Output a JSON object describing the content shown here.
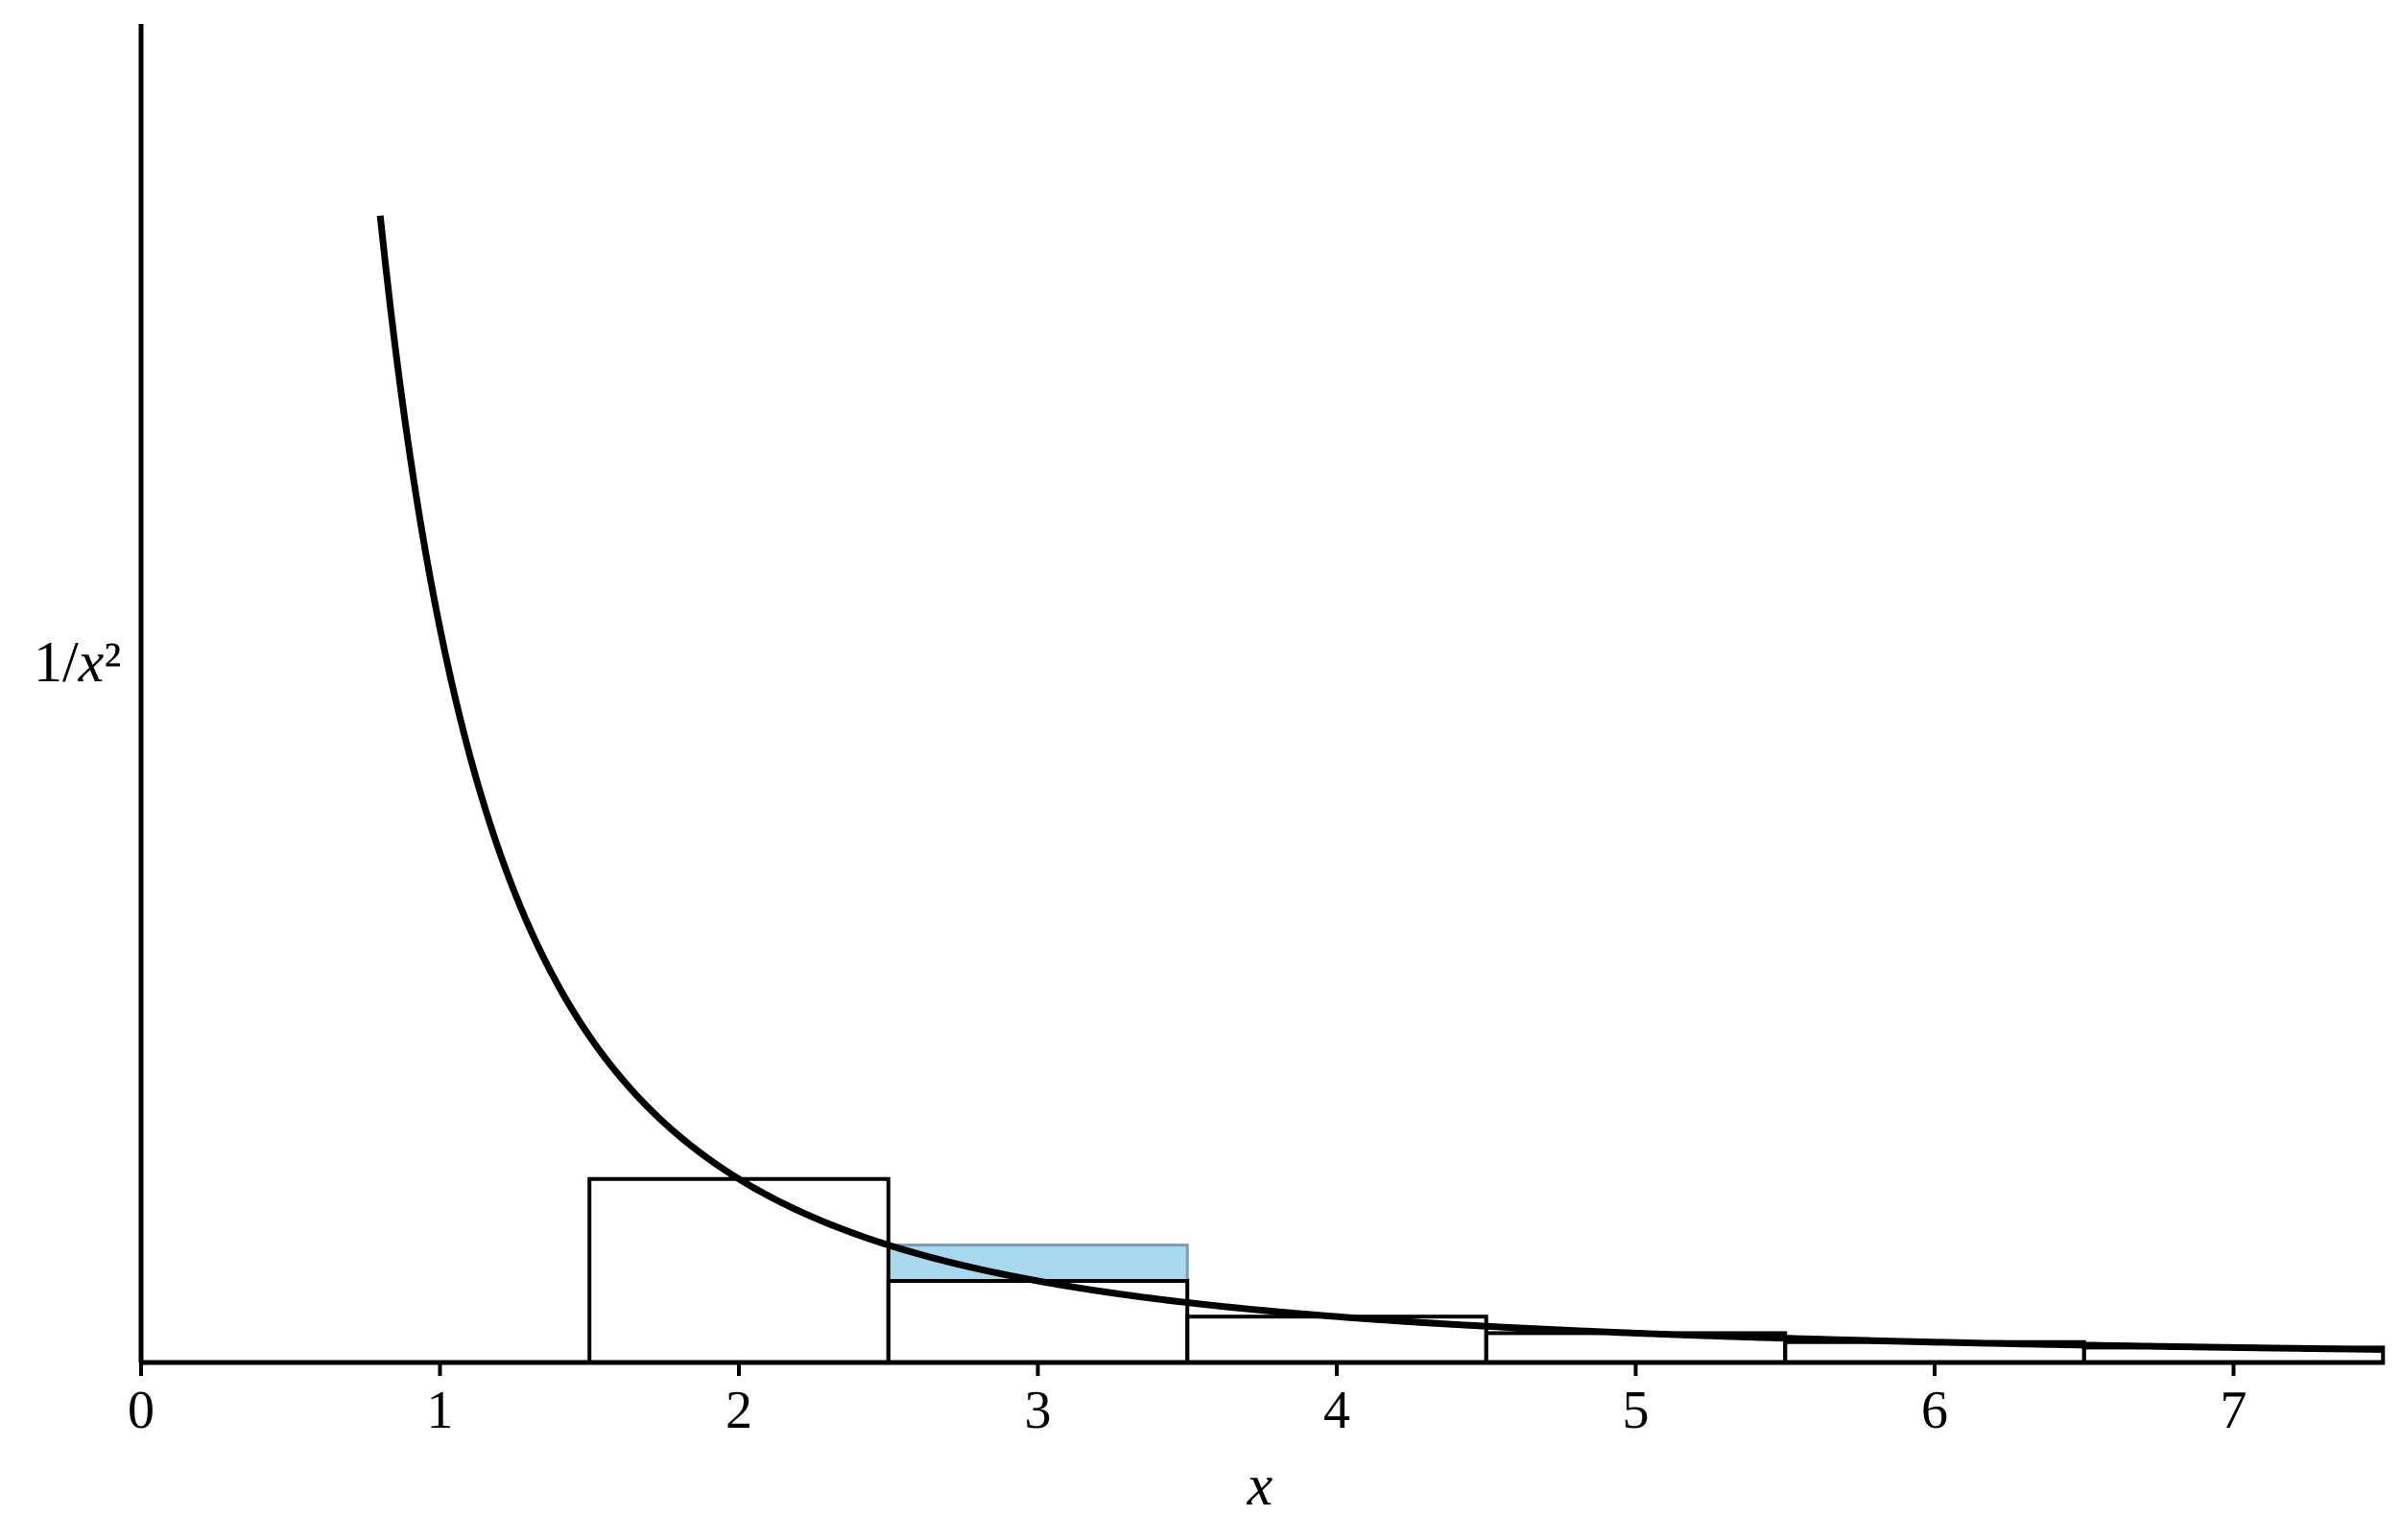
{
  "chart_data": {
    "type": "line",
    "title": "",
    "xlabel": "x",
    "ylabel": "1/x²",
    "xlim": [
      0,
      7.5
    ],
    "ylim": [
      0,
      1.6
    ],
    "x_ticks": [
      "0",
      "1",
      "2",
      "3",
      "4",
      "5",
      "6",
      "7"
    ],
    "x_tick_values": [
      0,
      1,
      2,
      3,
      4,
      5,
      6,
      7
    ],
    "y_ticks": [],
    "grid": false,
    "series": [
      {
        "type": "line",
        "function": "1/x^2",
        "x_range": [
          0.8,
          7.5
        ]
      }
    ],
    "rectangles": [
      {
        "x_start": 1.5,
        "x_end": 2.5,
        "height": 0.25
      },
      {
        "x_start": 2.5,
        "x_end": 3.5,
        "height": 0.1111
      },
      {
        "x_start": 3.5,
        "x_end": 4.5,
        "height": 0.0625
      },
      {
        "x_start": 4.5,
        "x_end": 5.5,
        "height": 0.04
      },
      {
        "x_start": 5.5,
        "x_end": 6.5,
        "height": 0.0278
      },
      {
        "x_start": 6.5,
        "x_end": 7.5,
        "height": 0.0204
      }
    ],
    "highlight": {
      "x_start": 2.5,
      "x_end": 3.5,
      "y_bottom": 0.1111,
      "y_top": 0.16,
      "color": "#a8d8ee"
    },
    "colors": {
      "line": "#000000",
      "highlight_fill": "#a8d8ee"
    }
  }
}
